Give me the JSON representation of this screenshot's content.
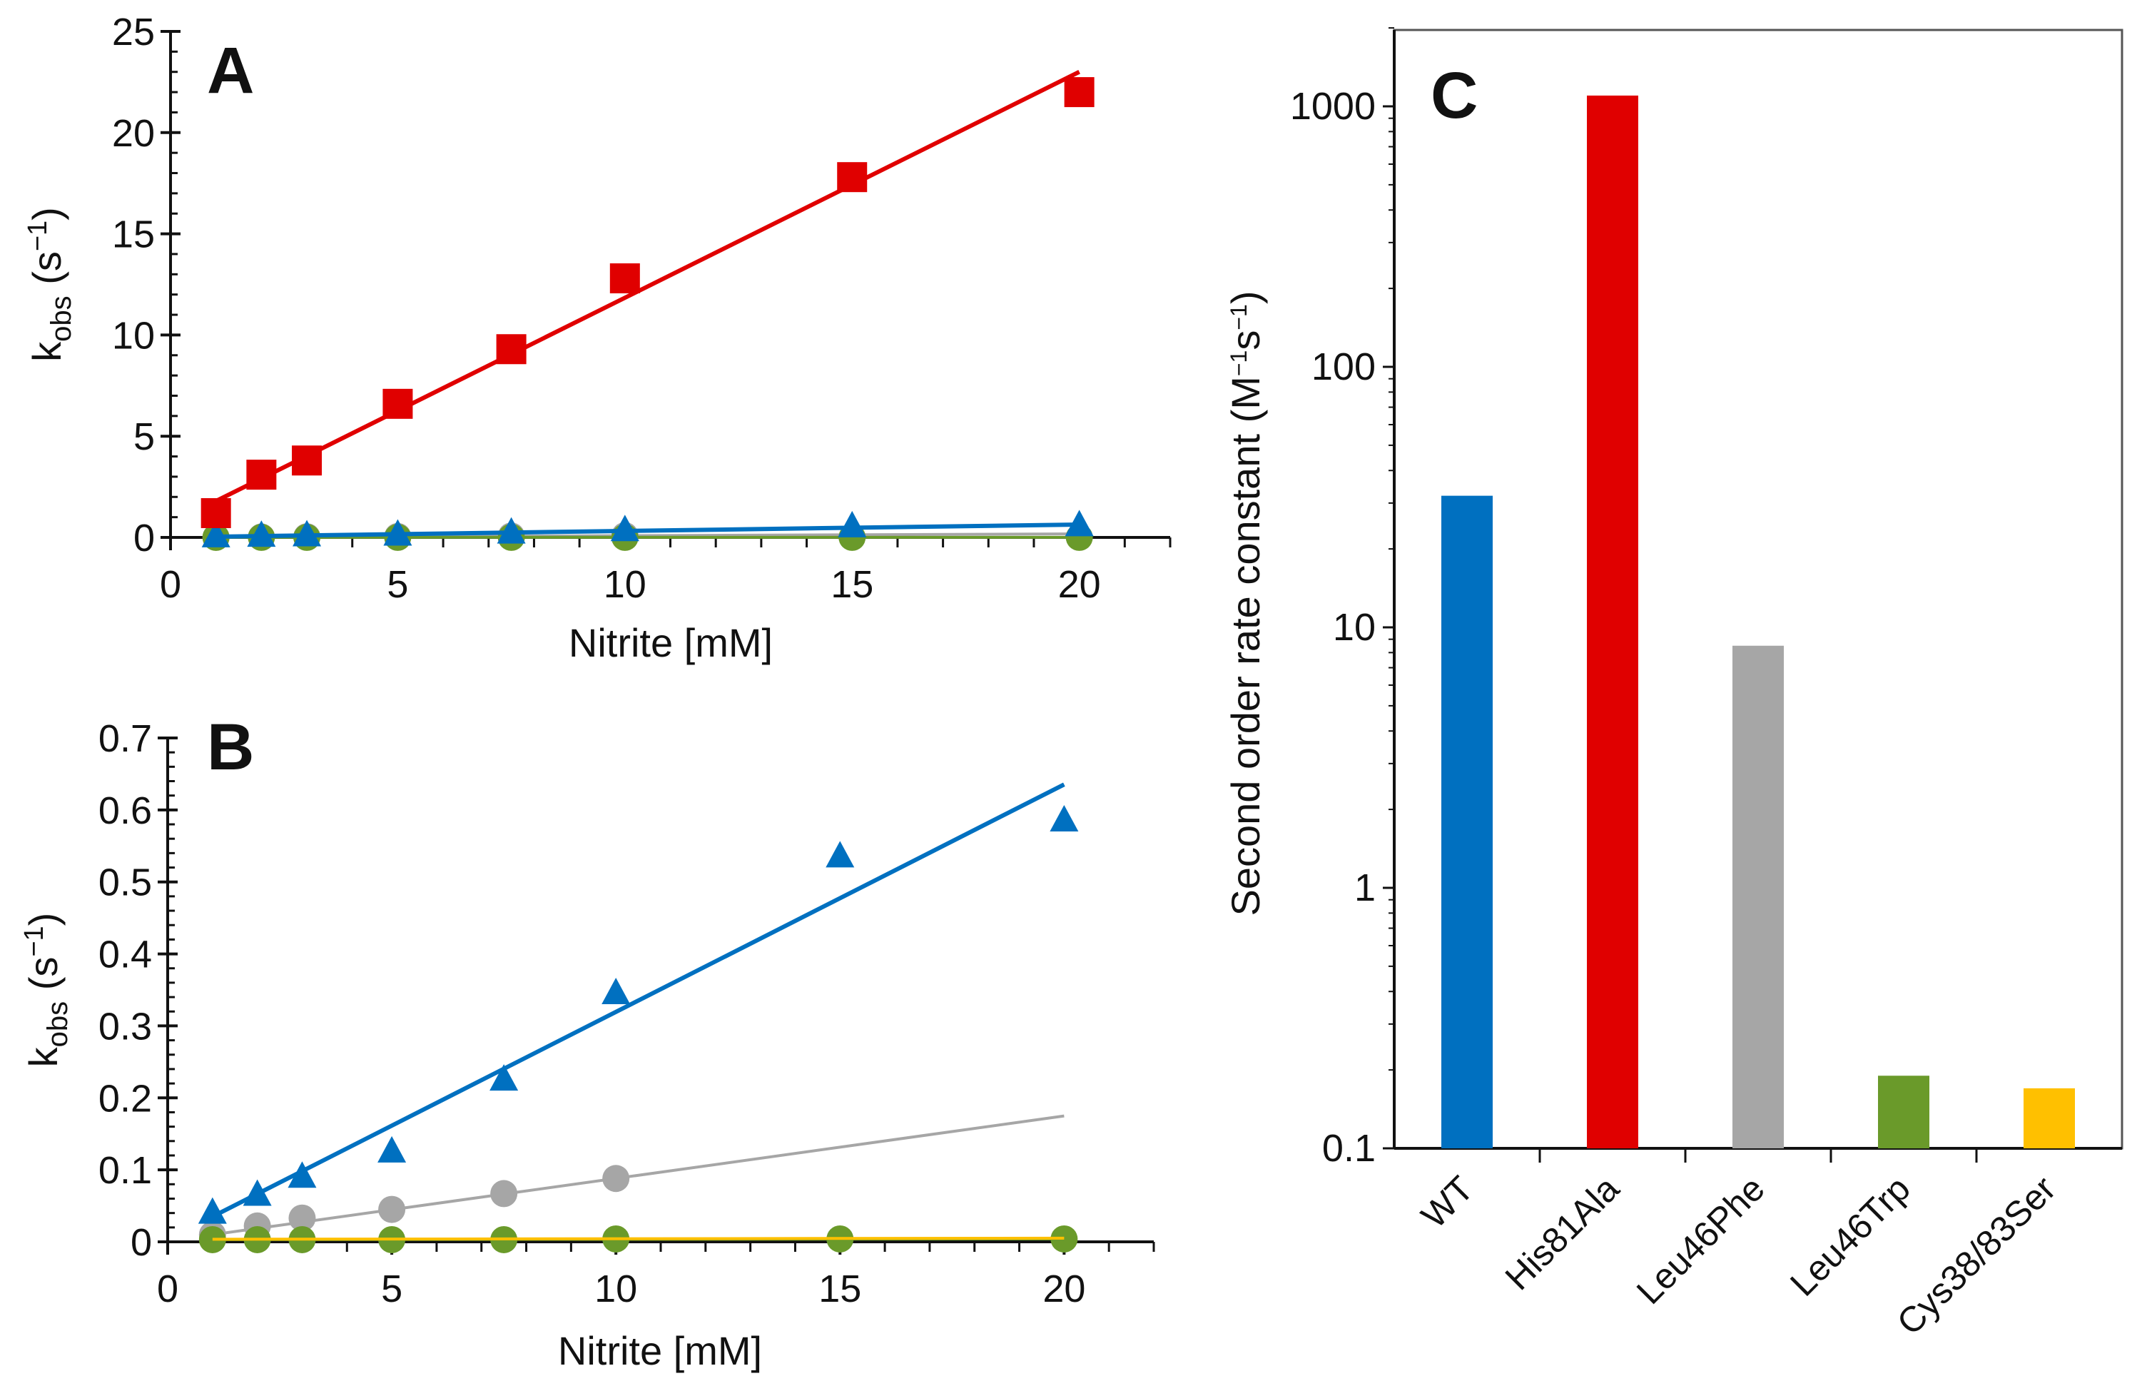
{
  "chart_data": [
    {
      "type": "scatter",
      "panel": "A",
      "xlabel": "Nitrite [mM]",
      "ylabel": {
        "main": "k",
        "sub": "obs",
        "open": " (s",
        "sup": "−1",
        "close": ")"
      },
      "xlim": [
        0,
        22
      ],
      "ylim": [
        0,
        25
      ],
      "xticks": [
        0,
        5,
        10,
        15,
        20
      ],
      "yticks": [
        0,
        5,
        10,
        15,
        20,
        25
      ],
      "minor_x": 1,
      "minor_y": 1,
      "grid": false,
      "series": [
        {
          "name": "Leu46Phe",
          "marker": "circle",
          "color": "#a6a6a6",
          "x": [
            1,
            2,
            3,
            5,
            7.5,
            10
          ],
          "y": [
            0.01,
            0.022,
            0.033,
            0.045,
            0.067,
            0.088
          ],
          "fit": {
            "slope": 0.00868,
            "intercept": 0.0013,
            "x": [
              1,
              20
            ]
          }
        },
        {
          "name": "Leu46Trp",
          "marker": "circle",
          "color": "#6a9a2a",
          "x": [
            1,
            2,
            3,
            5,
            7.5,
            10,
            15,
            20
          ],
          "y": [
            0.003,
            0.003,
            0.003,
            0.003,
            0.003,
            0.004,
            0.004,
            0.004
          ],
          "fit": {
            "slope": 5e-05,
            "intercept": 0.003,
            "x": [
              1,
              20
            ]
          }
        },
        {
          "name": "WT",
          "marker": "triangle",
          "color": "#0070c0",
          "x": [
            1,
            2,
            3,
            5,
            7.5,
            10,
            15,
            20
          ],
          "y": [
            0.04,
            0.065,
            0.09,
            0.125,
            0.225,
            0.345,
            0.535,
            0.585
          ],
          "fit": {
            "slope": 0.0316,
            "intercept": 0.0034,
            "x": [
              1,
              20
            ]
          }
        },
        {
          "name": "His81Ala",
          "marker": "square",
          "color": "#e00000",
          "x": [
            1,
            2,
            3,
            5,
            7.5,
            10,
            15,
            20
          ],
          "y": [
            1.2,
            3.1,
            3.8,
            6.6,
            9.3,
            12.8,
            17.8,
            22.0
          ],
          "fit": {
            "slope": 1.116,
            "intercept": 0.68,
            "x": [
              0.9,
              20
            ]
          }
        }
      ]
    },
    {
      "type": "scatter",
      "panel": "B",
      "xlabel": "Nitrite [mM]",
      "ylabel": {
        "main": "k",
        "sub": "obs",
        "open": " (s",
        "sup": "−1",
        "close": ")"
      },
      "xlim": [
        0,
        22
      ],
      "ylim": [
        0,
        0.7
      ],
      "xticks": [
        0,
        5,
        10,
        15,
        20
      ],
      "yticks": [
        0,
        0.1,
        0.2,
        0.3,
        0.4,
        0.5,
        0.6,
        0.7
      ],
      "minor_x": 1,
      "minor_y": 0.02,
      "grid": false,
      "series": [
        {
          "name": "Leu46Phe",
          "marker": "circle",
          "color": "#a6a6a6",
          "x": [
            1,
            2,
            3,
            5,
            7.5,
            10
          ],
          "y": [
            0.01,
            0.022,
            0.033,
            0.045,
            0.067,
            0.088
          ],
          "fit": {
            "slope": 0.00868,
            "intercept": 0.0013,
            "x": [
              1,
              20
            ]
          }
        },
        {
          "name": "Leu46Trp",
          "marker": "circle",
          "color": "#6a9a2a",
          "x": [
            1,
            2,
            3,
            5,
            7.5,
            10,
            15,
            20
          ],
          "y": [
            0.003,
            0.003,
            0.003,
            0.003,
            0.003,
            0.004,
            0.004,
            0.004
          ],
          "fit": {
            "slope": 5e-05,
            "intercept": 0.003,
            "x": [
              1,
              20
            ]
          }
        },
        {
          "name": "Cys38/83Ser",
          "marker": "none",
          "color": "#ffc000",
          "x": [],
          "y": [],
          "fit": {
            "slope": 8e-05,
            "intercept": 0.0035,
            "x": [
              1,
              20
            ]
          }
        },
        {
          "name": "WT",
          "marker": "triangle",
          "color": "#0070c0",
          "x": [
            1,
            2,
            3,
            5,
            7.5,
            10,
            15,
            20
          ],
          "y": [
            0.04,
            0.065,
            0.09,
            0.125,
            0.225,
            0.345,
            0.535,
            0.585
          ],
          "fit": {
            "slope": 0.0316,
            "intercept": 0.0034,
            "x": [
              1,
              20
            ]
          }
        }
      ]
    },
    {
      "type": "bar",
      "panel": "C",
      "yscale": "log",
      "ylabel": {
        "main": "Second order rate constant (M",
        "sup1": "−1",
        "mid": "s",
        "sup2": "−1",
        "close": ")"
      },
      "ylim": [
        0.1,
        2000
      ],
      "yticks": [
        0.1,
        1,
        10,
        100,
        1000
      ],
      "ytick_labels": [
        "0.1",
        "1",
        "10",
        "100",
        "1000"
      ],
      "categories": [
        "WT",
        "His81Ala",
        "Leu46Phe",
        "Leu46Trp",
        "Cys38/83Ser"
      ],
      "values": [
        32,
        1100,
        8.5,
        0.19,
        0.17
      ],
      "colors": [
        "#0070c0",
        "#e00000",
        "#a6a6a6",
        "#6a9a2a",
        "#ffc000"
      ],
      "grid": false
    }
  ]
}
